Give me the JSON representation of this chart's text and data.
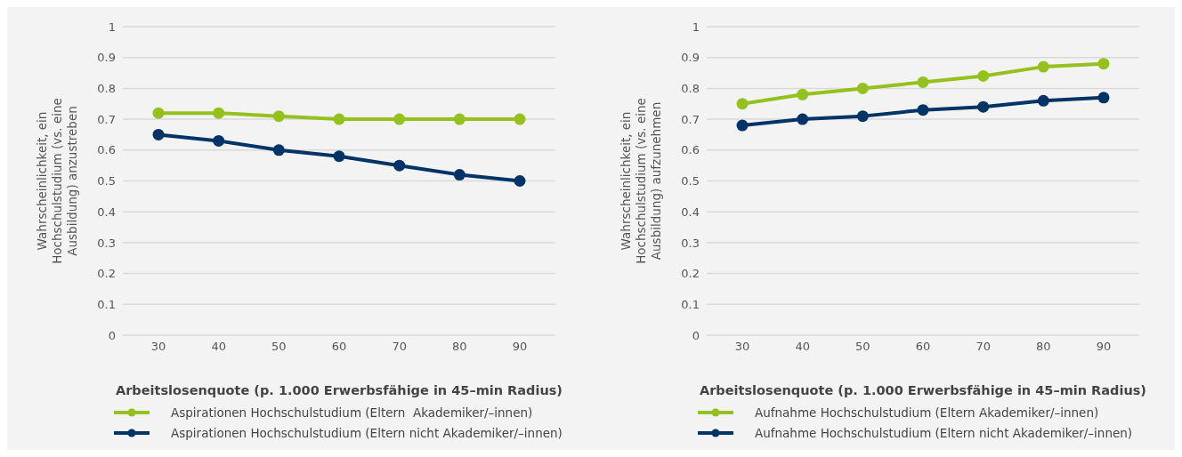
{
  "chart_data": [
    {
      "type": "line",
      "xlabel": "Arbeitslosenquote (p. 1.000 Erwerbsfähige in 45–min Radius)",
      "ylabel": "Wahrscheinlichkeit, ein Hochschulstudium (vs. eine Ausbildung) anzustreben",
      "categories": [
        "30",
        "40",
        "50",
        "60",
        "70",
        "80",
        "90"
      ],
      "series": [
        {
          "name": "Aspirationen Hochschulstudium (Eltern nicht Akademiker/–innen)",
          "color": "#003366",
          "values": [
            0.65,
            0.63,
            0.6,
            0.58,
            0.55,
            0.52,
            0.5
          ]
        },
        {
          "name": "Aspirationen Hochschulstudium (Eltern  Akademiker/–innen)",
          "color": "#95c11f",
          "values": [
            0.72,
            0.72,
            0.71,
            0.7,
            0.7,
            0.7,
            0.7
          ]
        }
      ],
      "ylim": [
        0,
        1
      ],
      "yticks": [
        0,
        0.1,
        0.2,
        0.3,
        0.4,
        0.5,
        0.6,
        0.7,
        0.8,
        0.9,
        1
      ],
      "grid": "y",
      "legend": "bottom",
      "marker": "circle",
      "line_style": "solid"
    },
    {
      "type": "line",
      "xlabel": "Arbeitslosenquote (p. 1.000 Erwerbsfähige in 45–min Radius)",
      "ylabel": "Wahrscheinlichkeit, ein Hochschulstudium (vs. eine Ausbildung) aufzunehmen",
      "categories": [
        "30",
        "40",
        "50",
        "60",
        "70",
        "80",
        "90"
      ],
      "series": [
        {
          "name": "Aufnahme Hochschulstudium (Eltern nicht Akademiker/–innen)",
          "color": "#003366",
          "values": [
            0.68,
            0.7,
            0.71,
            0.73,
            0.74,
            0.76,
            0.77
          ]
        },
        {
          "name": "Aufnahme Hochschulstudium (Eltern Akademiker/–innen)",
          "color": "#95c11f",
          "values": [
            0.75,
            0.78,
            0.8,
            0.82,
            0.84,
            0.87,
            0.88
          ]
        }
      ],
      "ylim": [
        0,
        1
      ],
      "yticks": [
        0,
        0.1,
        0.2,
        0.3,
        0.4,
        0.5,
        0.6,
        0.7,
        0.8,
        0.9,
        1
      ],
      "grid": "y",
      "legend": "bottom",
      "marker": "circle",
      "line_style": "solid"
    }
  ]
}
